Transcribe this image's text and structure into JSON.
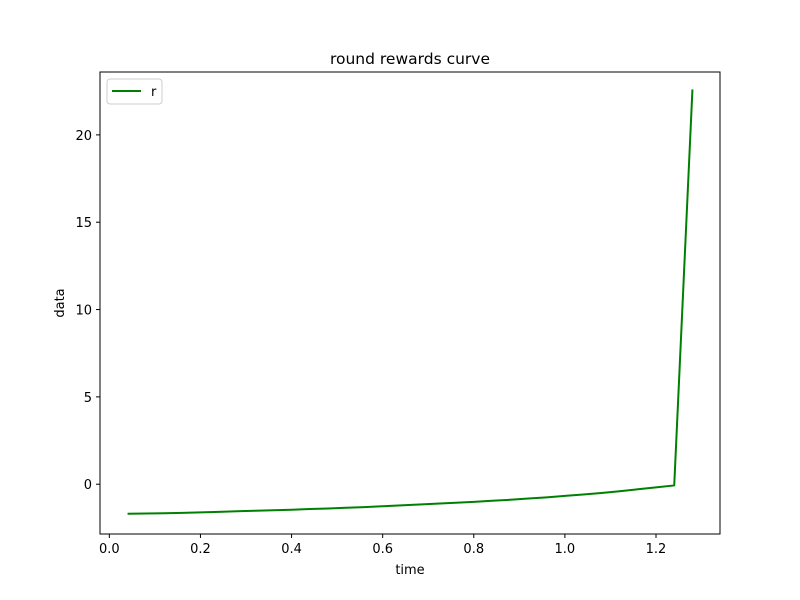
{
  "chart_data": {
    "type": "line",
    "title": "round rewards curve",
    "xlabel": "time",
    "ylabel": "data",
    "xlim": [
      -0.0205,
      1.3405
    ],
    "ylim": [
      -2.85,
      23.6
    ],
    "x_ticks": [
      0.0,
      0.2,
      0.4,
      0.6,
      0.8,
      1.0,
      1.2
    ],
    "x_tick_labels": [
      "0.0",
      "0.2",
      "0.4",
      "0.6",
      "0.8",
      "1.0",
      "1.2"
    ],
    "y_ticks": [
      0,
      5,
      10,
      15,
      20
    ],
    "y_tick_labels": [
      "0",
      "5",
      "10",
      "15",
      "20"
    ],
    "grid": false,
    "legend_position": "upper-left",
    "series": [
      {
        "name": "r",
        "color": "#008000",
        "x": [
          0.04,
          0.08,
          0.12,
          0.16,
          0.2,
          0.24,
          0.28,
          0.32,
          0.36,
          0.4,
          0.44,
          0.48,
          0.52,
          0.56,
          0.6,
          0.64,
          0.68,
          0.72,
          0.76,
          0.8,
          0.84,
          0.88,
          0.92,
          0.96,
          1.0,
          1.04,
          1.08,
          1.12,
          1.16,
          1.2,
          1.24,
          1.28
        ],
        "y": [
          -1.69,
          -1.68,
          -1.66,
          -1.64,
          -1.61,
          -1.58,
          -1.55,
          -1.52,
          -1.49,
          -1.46,
          -1.42,
          -1.39,
          -1.35,
          -1.31,
          -1.26,
          -1.21,
          -1.16,
          -1.11,
          -1.06,
          -1.01,
          -0.95,
          -0.89,
          -0.82,
          -0.75,
          -0.67,
          -0.59,
          -0.5,
          -0.4,
          -0.29,
          -0.18,
          -0.07,
          22.6
        ]
      }
    ]
  }
}
